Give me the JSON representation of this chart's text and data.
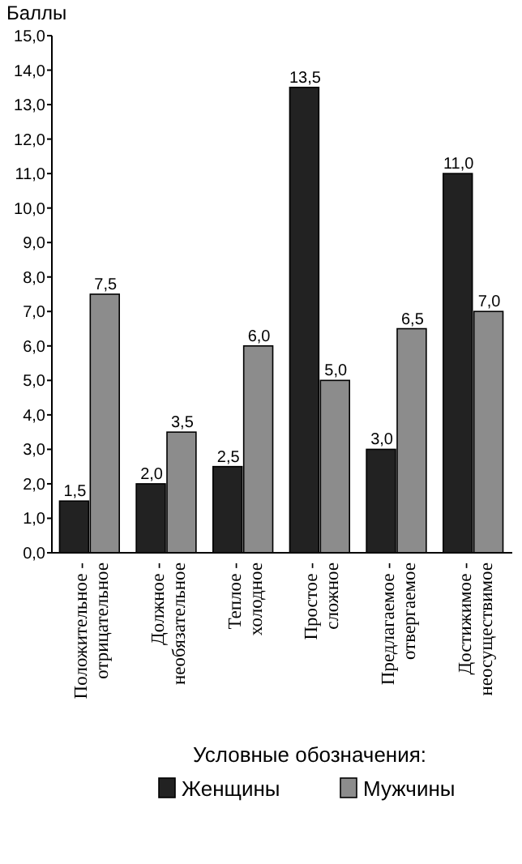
{
  "chart_data": {
    "type": "bar",
    "ylabel": "Баллы",
    "legend_title": "Условные обозначения:",
    "legend": "bottom",
    "categories": [
      "Положительное - отрицательное",
      "Должное - необязательное",
      "Теплое - холодное",
      "Простое - сложное",
      "Предлагаемое - отвергаемое",
      "Достижимое - неосуществимое"
    ],
    "series": [
      {
        "name": "Женщины",
        "color": "#222222",
        "values": [
          1.5,
          2.0,
          2.5,
          13.5,
          3.0,
          11.0
        ],
        "value_labels": [
          "1,5",
          "2,0",
          "2,5",
          "13,5",
          "3,0",
          "11,0"
        ]
      },
      {
        "name": "Мужчины",
        "color": "#8c8c8c",
        "values": [
          7.5,
          3.5,
          6.0,
          5.0,
          6.5,
          7.0
        ],
        "value_labels": [
          "7,5",
          "3,5",
          "6,0",
          "5,0",
          "6,5",
          "7,0"
        ]
      }
    ],
    "ylim": [
      0,
      15
    ],
    "yticks": [
      {
        "value": 0,
        "label": "0,0"
      },
      {
        "value": 1,
        "label": "1,0"
      },
      {
        "value": 2,
        "label": "2,0"
      },
      {
        "value": 3,
        "label": "3,0"
      },
      {
        "value": 4,
        "label": "4,0"
      },
      {
        "value": 5,
        "label": "5,0"
      },
      {
        "value": 6,
        "label": "6,0"
      },
      {
        "value": 7,
        "label": "7,0"
      },
      {
        "value": 8,
        "label": "8,0"
      },
      {
        "value": 9,
        "label": "9,0"
      },
      {
        "value": 10,
        "label": "10,0"
      },
      {
        "value": 11,
        "label": "11,0"
      },
      {
        "value": 12,
        "label": "12,0"
      },
      {
        "value": 13,
        "label": "13,0"
      },
      {
        "value": 14,
        "label": "14,0"
      },
      {
        "value": 15,
        "label": "15,0"
      }
    ]
  }
}
